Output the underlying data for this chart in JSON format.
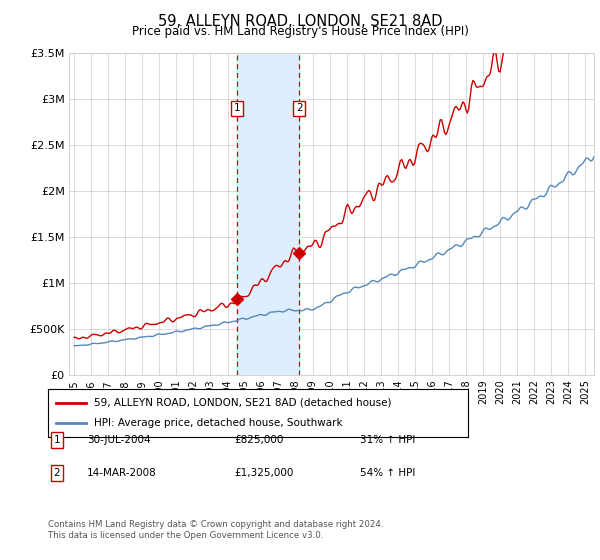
{
  "title": "59, ALLEYN ROAD, LONDON, SE21 8AD",
  "subtitle": "Price paid vs. HM Land Registry's House Price Index (HPI)",
  "legend_line1": "59, ALLEYN ROAD, LONDON, SE21 8AD (detached house)",
  "legend_line2": "HPI: Average price, detached house, Southwark",
  "transaction1_label": "1",
  "transaction1_date": "30-JUL-2004",
  "transaction1_price": "£825,000",
  "transaction1_hpi": "31% ↑ HPI",
  "transaction1_year": 2004.58,
  "transaction1_value": 825000,
  "transaction2_label": "2",
  "transaction2_date": "14-MAR-2008",
  "transaction2_price": "£1,325,000",
  "transaction2_hpi": "54% ↑ HPI",
  "transaction2_year": 2008.21,
  "transaction2_value": 1325000,
  "red_line_color": "#cc0000",
  "blue_line_color": "#5588bb",
  "shade_color": "#ddeeff",
  "background_color": "#ffffff",
  "grid_color": "#cccccc",
  "ylim": [
    0,
    3500000
  ],
  "yticks": [
    0,
    500000,
    1000000,
    1500000,
    2000000,
    2500000,
    3000000,
    3500000
  ],
  "ytick_labels": [
    "£0",
    "£500K",
    "£1M",
    "£1.5M",
    "£2M",
    "£2.5M",
    "£3M",
    "£3.5M"
  ],
  "xlim_start": 1994.7,
  "xlim_end": 2025.5,
  "xticks": [
    1995,
    1996,
    1997,
    1998,
    1999,
    2000,
    2001,
    2002,
    2003,
    2004,
    2005,
    2006,
    2007,
    2008,
    2009,
    2010,
    2011,
    2012,
    2013,
    2014,
    2015,
    2016,
    2017,
    2018,
    2019,
    2020,
    2021,
    2022,
    2023,
    2024,
    2025
  ],
  "xtick_labels": [
    "1995",
    "1996",
    "1997",
    "1998",
    "1999",
    "2000",
    "2001",
    "2002",
    "2003",
    "2004",
    "2005",
    "2006",
    "2007",
    "2008",
    "2009",
    "2010",
    "2011",
    "2012",
    "2013",
    "2014",
    "2015",
    "2016",
    "2017",
    "2018",
    "2019",
    "2020",
    "2021",
    "2022",
    "2023",
    "2024",
    "2025"
  ],
  "footer_line1": "Contains HM Land Registry data © Crown copyright and database right 2024.",
  "footer_line2": "This data is licensed under the Open Government Licence v3.0."
}
